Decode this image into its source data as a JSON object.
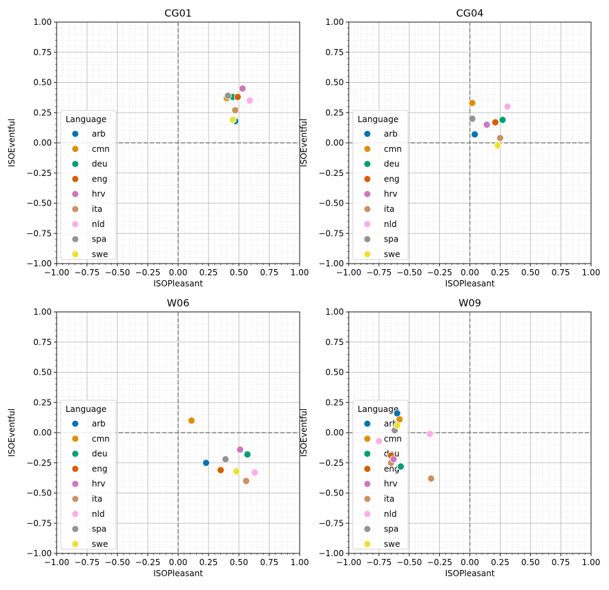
{
  "figure": {
    "xlabel": "ISOPleasant",
    "ylabel": "ISOEventful",
    "legend_title": "Language",
    "legend_position": "lower-left"
  },
  "series_colors": {
    "arb": "#0173b2",
    "cmn": "#de8f05",
    "deu": "#029e73",
    "eng": "#d55e00",
    "hrv": "#cc78bc",
    "ita": "#ca9161",
    "nld": "#fbafe4",
    "spa": "#949494",
    "swe": "#ece133"
  },
  "chart_data": [
    {
      "type": "scatter",
      "title": "CG01",
      "xlabel": "ISOPleasant",
      "ylabel": "ISOEventful",
      "xlim": [
        -1,
        1
      ],
      "ylim": [
        -1,
        1
      ],
      "grid": true,
      "reference_lines": [
        {
          "axis": "x",
          "value": 0,
          "style": "dashed"
        },
        {
          "axis": "y",
          "value": 0,
          "style": "dashed"
        }
      ],
      "legend": {
        "title": "Language",
        "position": "lower-left"
      },
      "series": [
        {
          "name": "arb",
          "x": [
            0.47
          ],
          "y": [
            0.18
          ]
        },
        {
          "name": "cmn",
          "x": [
            0.4
          ],
          "y": [
            0.37
          ]
        },
        {
          "name": "deu",
          "x": [
            0.45
          ],
          "y": [
            0.38
          ]
        },
        {
          "name": "eng",
          "x": [
            0.49
          ],
          "y": [
            0.38
          ]
        },
        {
          "name": "hrv",
          "x": [
            0.53
          ],
          "y": [
            0.45
          ]
        },
        {
          "name": "ita",
          "x": [
            0.47
          ],
          "y": [
            0.27
          ]
        },
        {
          "name": "nld",
          "x": [
            0.59
          ],
          "y": [
            0.35
          ]
        },
        {
          "name": "spa",
          "x": [
            0.41
          ],
          "y": [
            0.39
          ]
        },
        {
          "name": "swe",
          "x": [
            0.45
          ],
          "y": [
            0.19
          ]
        }
      ]
    },
    {
      "type": "scatter",
      "title": "CG04",
      "xlabel": "ISOPleasant",
      "ylabel": "ISOEventful",
      "xlim": [
        -1,
        1
      ],
      "ylim": [
        -1,
        1
      ],
      "grid": true,
      "reference_lines": [
        {
          "axis": "x",
          "value": 0,
          "style": "dashed"
        },
        {
          "axis": "y",
          "value": 0,
          "style": "dashed"
        }
      ],
      "legend": {
        "title": "Language",
        "position": "lower-left"
      },
      "series": [
        {
          "name": "arb",
          "x": [
            0.04
          ],
          "y": [
            0.07
          ]
        },
        {
          "name": "cmn",
          "x": [
            0.02
          ],
          "y": [
            0.33
          ]
        },
        {
          "name": "deu",
          "x": [
            0.27
          ],
          "y": [
            0.19
          ]
        },
        {
          "name": "eng",
          "x": [
            0.21
          ],
          "y": [
            0.17
          ]
        },
        {
          "name": "hrv",
          "x": [
            0.14
          ],
          "y": [
            0.15
          ]
        },
        {
          "name": "ita",
          "x": [
            0.25
          ],
          "y": [
            0.04
          ]
        },
        {
          "name": "nld",
          "x": [
            0.31
          ],
          "y": [
            0.3
          ]
        },
        {
          "name": "spa",
          "x": [
            0.02
          ],
          "y": [
            0.2
          ]
        },
        {
          "name": "swe",
          "x": [
            0.23
          ],
          "y": [
            -0.02
          ]
        }
      ]
    },
    {
      "type": "scatter",
      "title": "W06",
      "xlabel": "ISOPleasant",
      "ylabel": "ISOEventful",
      "xlim": [
        -1,
        1
      ],
      "ylim": [
        -1,
        1
      ],
      "grid": true,
      "reference_lines": [
        {
          "axis": "x",
          "value": 0,
          "style": "dashed"
        },
        {
          "axis": "y",
          "value": 0,
          "style": "dashed"
        }
      ],
      "legend": {
        "title": "Language",
        "position": "lower-left"
      },
      "series": [
        {
          "name": "arb",
          "x": [
            0.23
          ],
          "y": [
            -0.25
          ]
        },
        {
          "name": "cmn",
          "x": [
            0.11
          ],
          "y": [
            0.1
          ]
        },
        {
          "name": "deu",
          "x": [
            0.57
          ],
          "y": [
            -0.18
          ]
        },
        {
          "name": "eng",
          "x": [
            0.35
          ],
          "y": [
            -0.31
          ]
        },
        {
          "name": "hrv",
          "x": [
            0.51
          ],
          "y": [
            -0.14
          ]
        },
        {
          "name": "ita",
          "x": [
            0.56
          ],
          "y": [
            -0.4
          ]
        },
        {
          "name": "nld",
          "x": [
            0.63
          ],
          "y": [
            -0.33
          ]
        },
        {
          "name": "spa",
          "x": [
            0.39
          ],
          "y": [
            -0.22
          ]
        },
        {
          "name": "swe",
          "x": [
            0.48
          ],
          "y": [
            -0.32
          ]
        }
      ]
    },
    {
      "type": "scatter",
      "title": "W09",
      "xlabel": "ISOPleasant",
      "ylabel": "ISOEventful",
      "xlim": [
        -1,
        1
      ],
      "ylim": [
        -1,
        1
      ],
      "grid": true,
      "reference_lines": [
        {
          "axis": "x",
          "value": 0,
          "style": "dashed"
        },
        {
          "axis": "y",
          "value": 0,
          "style": "dashed"
        }
      ],
      "legend": {
        "title": "Language",
        "position": "lower-left"
      },
      "series": [
        {
          "name": "arb",
          "x": [
            -0.6
          ],
          "y": [
            0.16
          ]
        },
        {
          "name": "cmn",
          "x": [
            -0.58
          ],
          "y": [
            0.11
          ]
        },
        {
          "name": "deu",
          "x": [
            -0.57
          ],
          "y": [
            -0.28
          ]
        },
        {
          "name": "eng",
          "x": [
            -0.65
          ],
          "y": [
            -0.19
          ]
        },
        {
          "name": "hrv",
          "x": [
            -0.63
          ],
          "y": [
            -0.22
          ]
        },
        {
          "name": "ita",
          "x": [
            -0.32
          ],
          "y": [
            -0.38
          ]
        },
        {
          "name": "nld",
          "x": [
            -0.33
          ],
          "y": [
            -0.01
          ]
        },
        {
          "name": "spa",
          "x": [
            -0.62
          ],
          "y": [
            0.02
          ]
        },
        {
          "name": "swe",
          "x": [
            -0.6
          ],
          "y": [
            0.06
          ]
        }
      ],
      "extra_points": [
        {
          "name": "nld",
          "x": [
            -0.75
          ],
          "y": [
            -0.07
          ]
        },
        {
          "name": "ita",
          "x": [
            -0.65
          ],
          "y": [
            -0.25
          ]
        }
      ]
    }
  ]
}
